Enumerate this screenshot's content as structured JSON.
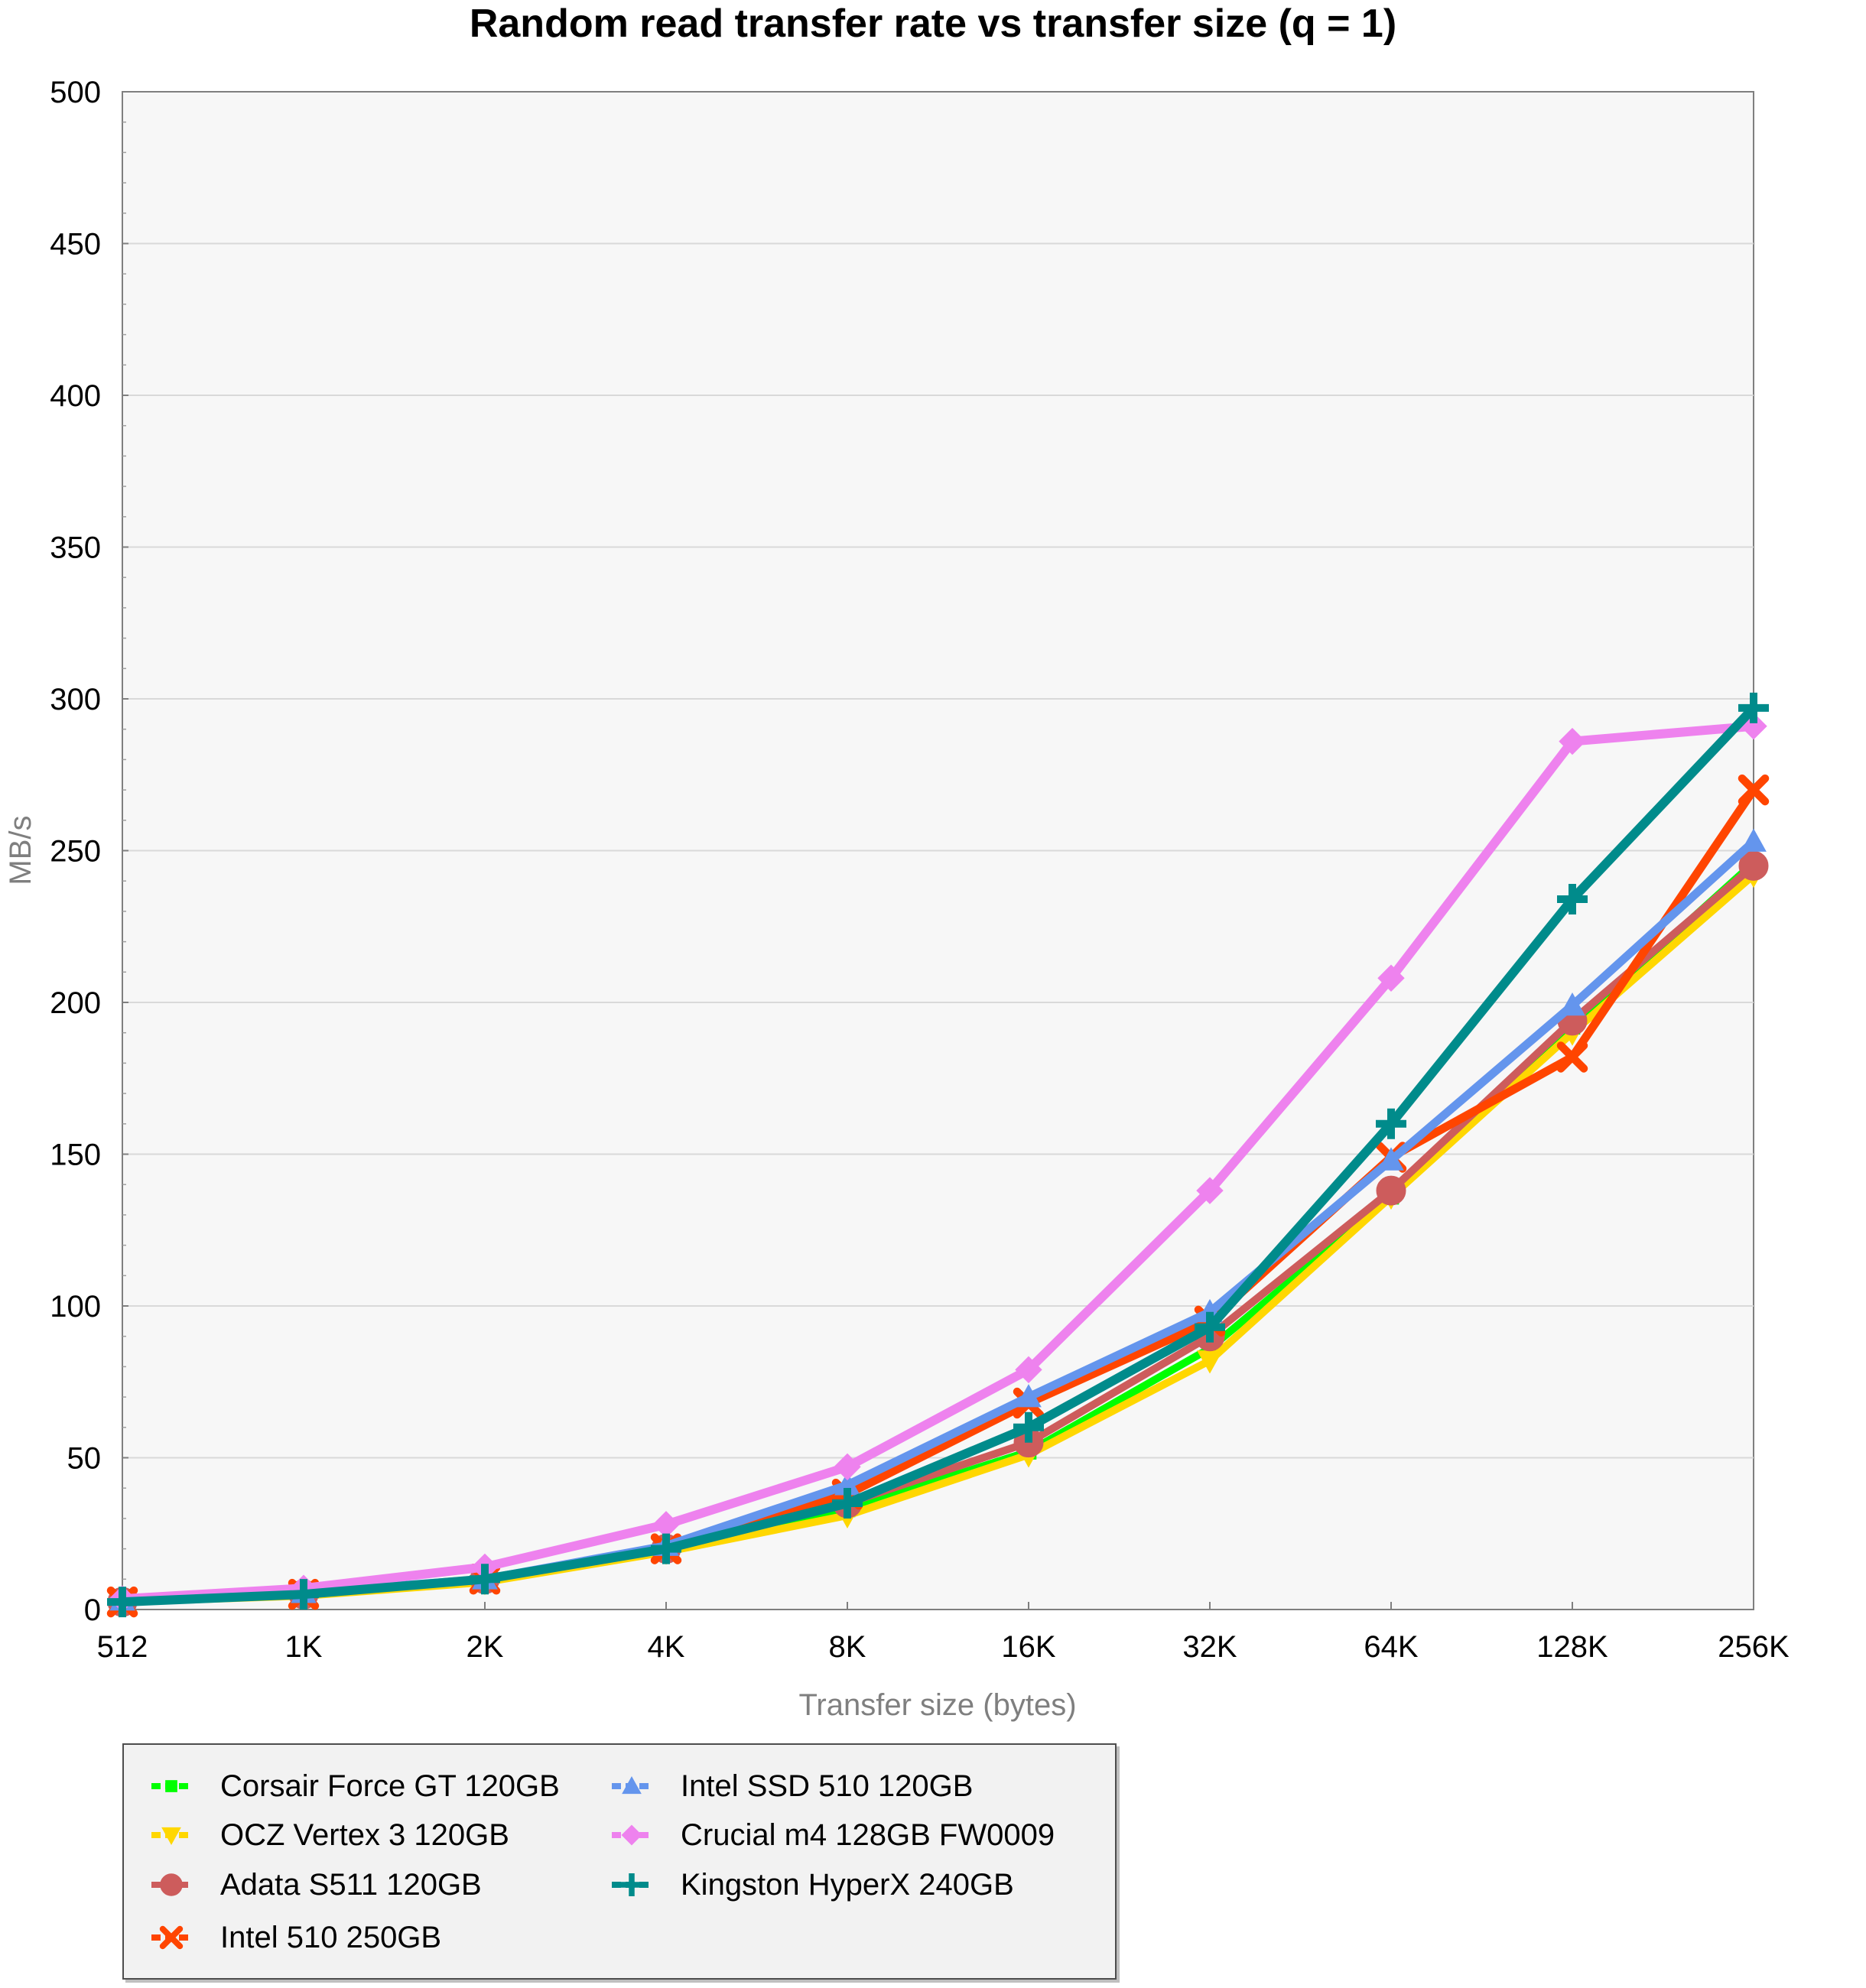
{
  "chart_data": {
    "type": "line",
    "title": "Random read transfer rate vs transfer size (q = 1)",
    "xlabel": "Transfer size (bytes)",
    "ylabel": "MB/s",
    "ylim": [
      0,
      500
    ],
    "yticks": [
      0,
      50,
      100,
      150,
      200,
      250,
      300,
      350,
      400,
      450,
      500
    ],
    "categories": [
      "512",
      "1K",
      "2K",
      "4K",
      "8K",
      "16K",
      "32K",
      "64K",
      "128K",
      "256K"
    ],
    "grid": true,
    "legend_position": "bottom",
    "series": [
      {
        "name": "Corsair Force GT 120GB",
        "color": "#00ff00",
        "marker": "square",
        "values": [
          2.5,
          5,
          9.5,
          20,
          33,
          52,
          86,
          136,
          192,
          246
        ]
      },
      {
        "name": "OCZ Vertex 3 120GB",
        "color": "#ffd700",
        "marker": "triangle-down",
        "values": [
          2.5,
          4.5,
          9,
          19,
          31,
          51,
          82,
          136,
          190,
          242
        ]
      },
      {
        "name": "Adata S511 120GB",
        "color": "#cd5c5c",
        "marker": "circle",
        "values": [
          2.5,
          5,
          10,
          20,
          35,
          55,
          90,
          138,
          194,
          245
        ]
      },
      {
        "name": "Intel 510 250GB",
        "color": "#ff4500",
        "marker": "x",
        "values": [
          2.5,
          5,
          10,
          20,
          38,
          68,
          95,
          149,
          182,
          270
        ]
      },
      {
        "name": "Intel SSD 510 120GB",
        "color": "#6495ed",
        "marker": "triangle-up",
        "values": [
          3,
          5.5,
          10,
          21,
          41,
          70,
          98,
          148,
          199,
          253
        ]
      },
      {
        "name": "Crucial m4 128GB FW0009",
        "color": "#ee82ee",
        "marker": "diamond",
        "values": [
          3.5,
          7,
          14,
          28,
          47,
          79,
          138,
          208,
          286,
          291
        ]
      },
      {
        "name": "Kingston HyperX 240GB",
        "color": "#008b8b",
        "marker": "plus",
        "values": [
          2.5,
          5,
          10,
          20,
          35,
          60,
          93,
          160,
          234,
          297
        ]
      }
    ]
  }
}
